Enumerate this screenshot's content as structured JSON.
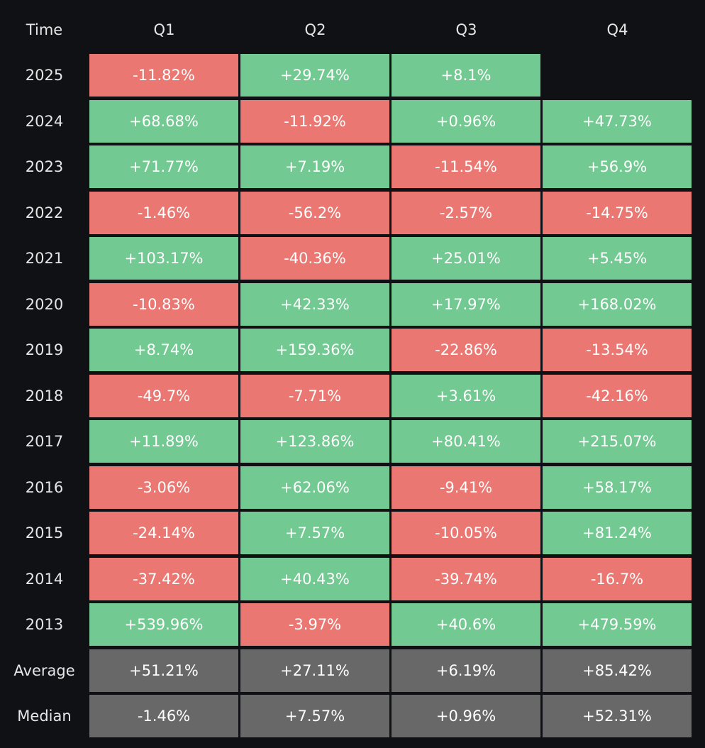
{
  "colors": {
    "positive": "#72c991",
    "negative": "#eb7772",
    "summary": "#686868",
    "background": "#0f1115"
  },
  "chart_data": {
    "type": "table",
    "header_label": "Time",
    "columns": [
      "Q1",
      "Q2",
      "Q3",
      "Q4"
    ],
    "rows": [
      {
        "label": "2025",
        "values": [
          "-11.82%",
          "+29.74%",
          "+8.1%",
          null
        ]
      },
      {
        "label": "2024",
        "values": [
          "+68.68%",
          "-11.92%",
          "+0.96%",
          "+47.73%"
        ]
      },
      {
        "label": "2023",
        "values": [
          "+71.77%",
          "+7.19%",
          "-11.54%",
          "+56.9%"
        ]
      },
      {
        "label": "2022",
        "values": [
          "-1.46%",
          "-56.2%",
          "-2.57%",
          "-14.75%"
        ]
      },
      {
        "label": "2021",
        "values": [
          "+103.17%",
          "-40.36%",
          "+25.01%",
          "+5.45%"
        ]
      },
      {
        "label": "2020",
        "values": [
          "-10.83%",
          "+42.33%",
          "+17.97%",
          "+168.02%"
        ]
      },
      {
        "label": "2019",
        "values": [
          "+8.74%",
          "+159.36%",
          "-22.86%",
          "-13.54%"
        ]
      },
      {
        "label": "2018",
        "values": [
          "-49.7%",
          "-7.71%",
          "+3.61%",
          "-42.16%"
        ]
      },
      {
        "label": "2017",
        "values": [
          "+11.89%",
          "+123.86%",
          "+80.41%",
          "+215.07%"
        ]
      },
      {
        "label": "2016",
        "values": [
          "-3.06%",
          "+62.06%",
          "-9.41%",
          "+58.17%"
        ]
      },
      {
        "label": "2015",
        "values": [
          "-24.14%",
          "+7.57%",
          "-10.05%",
          "+81.24%"
        ]
      },
      {
        "label": "2014",
        "values": [
          "-37.42%",
          "+40.43%",
          "-39.74%",
          "-16.7%"
        ]
      },
      {
        "label": "2013",
        "values": [
          "+539.96%",
          "-3.97%",
          "+40.6%",
          "+479.59%"
        ]
      }
    ],
    "summary_rows": [
      {
        "label": "Average",
        "values": [
          "+51.21%",
          "+27.11%",
          "+6.19%",
          "+85.42%"
        ]
      },
      {
        "label": "Median",
        "values": [
          "-1.46%",
          "+7.57%",
          "+0.96%",
          "+52.31%"
        ]
      }
    ]
  }
}
